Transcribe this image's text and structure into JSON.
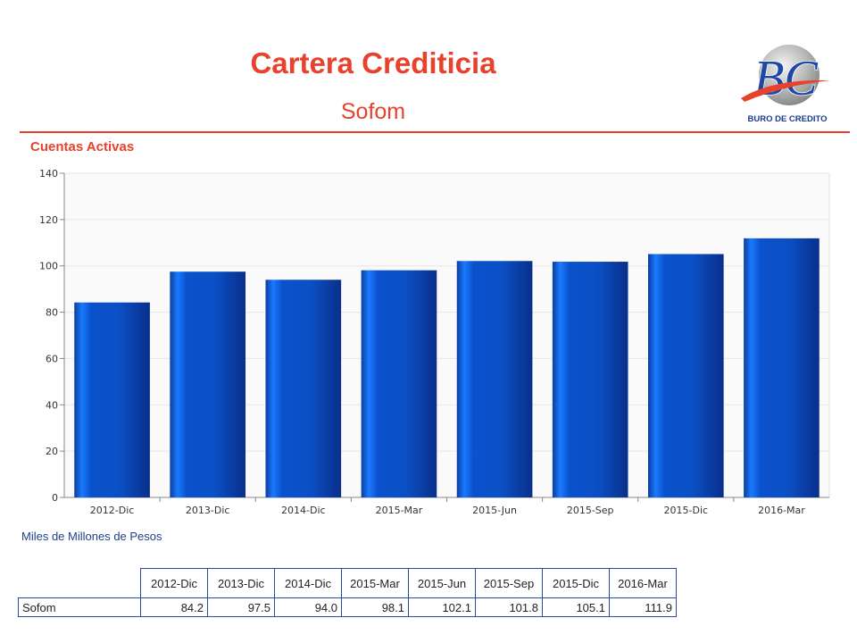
{
  "header": {
    "title": "Cartera Crediticia",
    "subtitle": "Sofom",
    "logo_text": "BURO DE CREDITO",
    "logo_monogram": "BC"
  },
  "section_title": "Cuentas Activas",
  "units_label": "Miles de Millones de Pesos",
  "colors": {
    "accent": "#e8412c",
    "bar": "#0d55c8",
    "bar_dark": "#0a2f8a",
    "table_border": "#2a4d9a"
  },
  "chart_data": {
    "type": "bar",
    "title": "Cuentas Activas",
    "xlabel": "",
    "ylabel": "",
    "categories": [
      "2012-Dic",
      "2013-Dic",
      "2014-Dic",
      "2015-Mar",
      "2015-Jun",
      "2015-Sep",
      "2015-Dic",
      "2016-Mar"
    ],
    "series": [
      {
        "name": "Sofom",
        "values": [
          84.2,
          97.5,
          94.0,
          98.1,
          102.1,
          101.8,
          105.1,
          111.9
        ]
      }
    ],
    "ylim": [
      0,
      140
    ],
    "yticks": [
      0,
      20,
      40,
      60,
      80,
      100,
      120,
      140
    ],
    "grid": true,
    "legend": "none"
  },
  "table": {
    "headers": [
      "2012-Dic",
      "2013-Dic",
      "2014-Dic",
      "2015-Mar",
      "2015-Jun",
      "2015-Sep",
      "2015-Dic",
      "2016-Mar"
    ],
    "rows": [
      {
        "label": "Sofom",
        "values": [
          "84.2",
          "97.5",
          "94.0",
          "98.1",
          "102.1",
          "101.8",
          "105.1",
          "111.9"
        ]
      }
    ]
  }
}
